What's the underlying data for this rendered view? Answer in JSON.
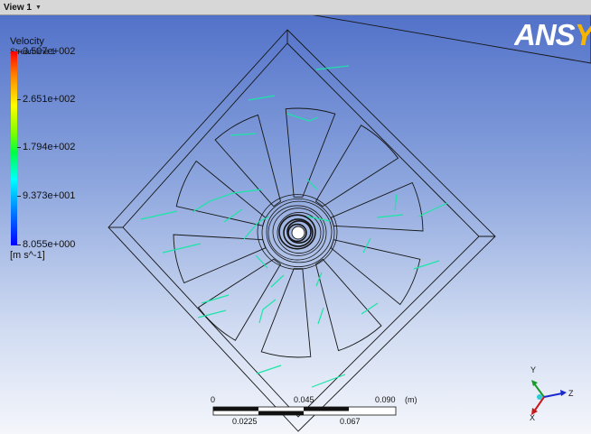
{
  "view_tab": {
    "label": "View 1",
    "caret_icon": "chevron-down-icon"
  },
  "legend": {
    "title": "Velocity",
    "subtitle": "Streamline 1",
    "ticks": [
      "3.507e+002",
      "2.651e+002",
      "1.794e+002",
      "9.373e+001",
      "8.055e+000"
    ],
    "unit": "[m s^-1]"
  },
  "logo": {
    "text_main": "ANS",
    "text_accent": "YS"
  },
  "scale_bar": {
    "top_labels": [
      "0",
      "0.045",
      "0.090"
    ],
    "unit": "(m)",
    "bottom_labels": [
      "0.0225",
      "0.067"
    ]
  },
  "axis_triad": {
    "y": "Y",
    "z": "Z",
    "x": "X"
  },
  "colors": {
    "streamline": "#19e6a6",
    "geometry_line": "#151515",
    "background_top": "#5272c9",
    "background_bottom": "#f4f6fb"
  }
}
